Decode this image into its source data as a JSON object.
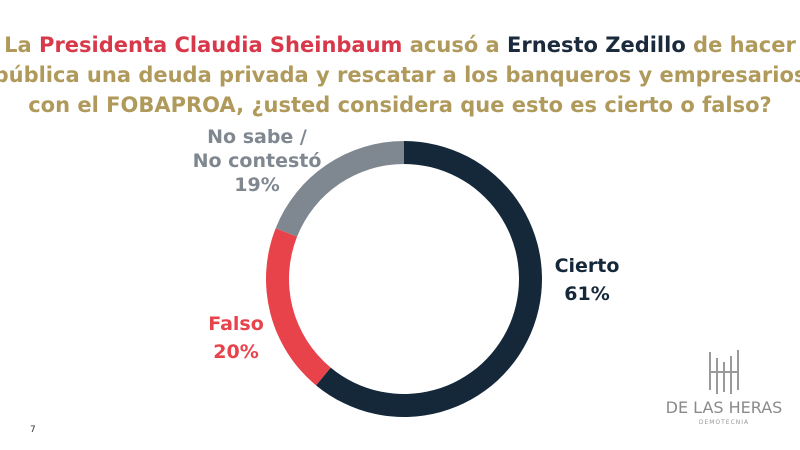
{
  "chart_data": {
    "type": "donut",
    "title": [
      [
        {
          "text": "La ",
          "color": "#b09a5b"
        },
        {
          "text": "Presidenta Claudia Sheinbaum",
          "color": "#d8394a"
        },
        {
          "text": " acusó a ",
          "color": "#b09a5b"
        },
        {
          "text": "Ernesto Zedillo",
          "color": "#1b2a3c"
        },
        {
          "text": " de hacer",
          "color": "#b09a5b"
        }
      ],
      [
        {
          "text": "pública una deuda privada y rescatar a los banqueros y empresarios",
          "color": "#b09a5b"
        }
      ],
      [
        {
          "text": "con el FOBAPROA, ¿usted considera que esto es cierto o falso?",
          "color": "#b09a5b"
        }
      ]
    ],
    "categories": [
      "Cierto",
      "Falso",
      "No sabe / No contestó"
    ],
    "values": [
      61,
      20,
      19
    ],
    "value_labels": [
      "61%",
      "20%",
      "19%"
    ],
    "colors": [
      "#14283a",
      "#e8434a",
      "#7f8790"
    ]
  },
  "page_number": "7",
  "logo": {
    "name": "DE LAS HERAS",
    "tagline": "DEMOTECNIA"
  }
}
